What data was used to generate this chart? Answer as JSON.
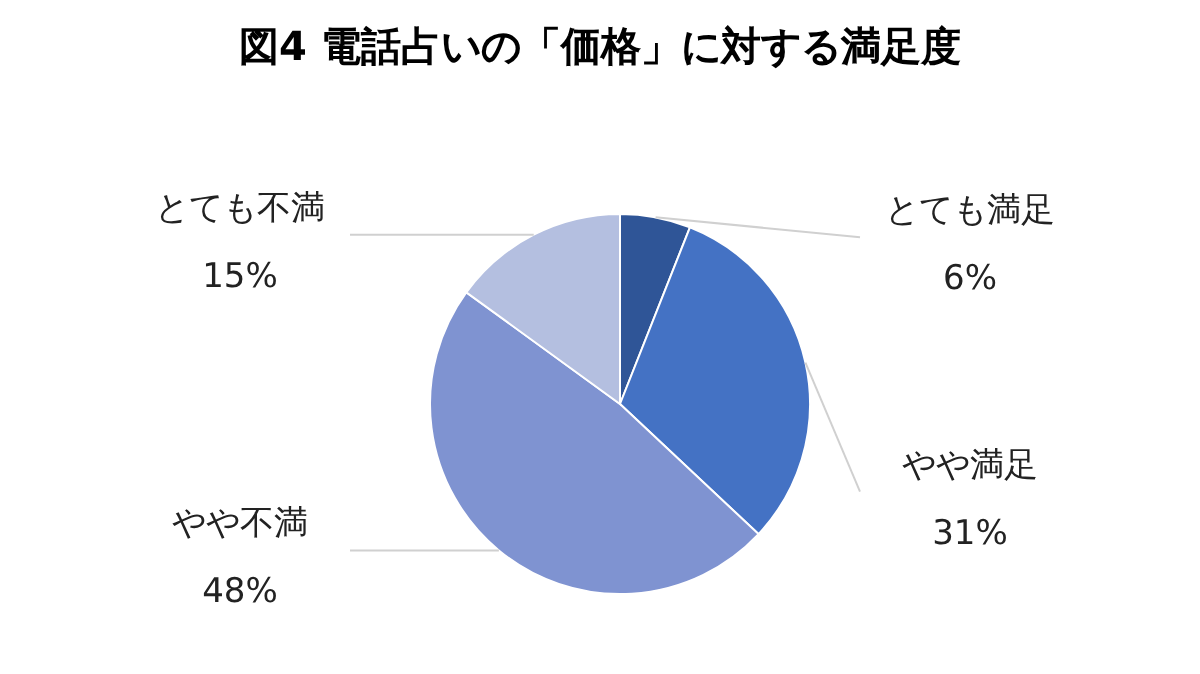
{
  "chart_data": {
    "type": "pie",
    "title": "図4 電話占いの「価格」に対する満足度",
    "categories": [
      "とても満足",
      "やや満足",
      "やや不満",
      "とても不満"
    ],
    "values": [
      6,
      31,
      48,
      15
    ],
    "colors": [
      "#2f5597",
      "#4472c4",
      "#7f93d1",
      "#b4bfe0"
    ],
    "value_labels": [
      "6%",
      "31%",
      "48%",
      "15%"
    ]
  }
}
